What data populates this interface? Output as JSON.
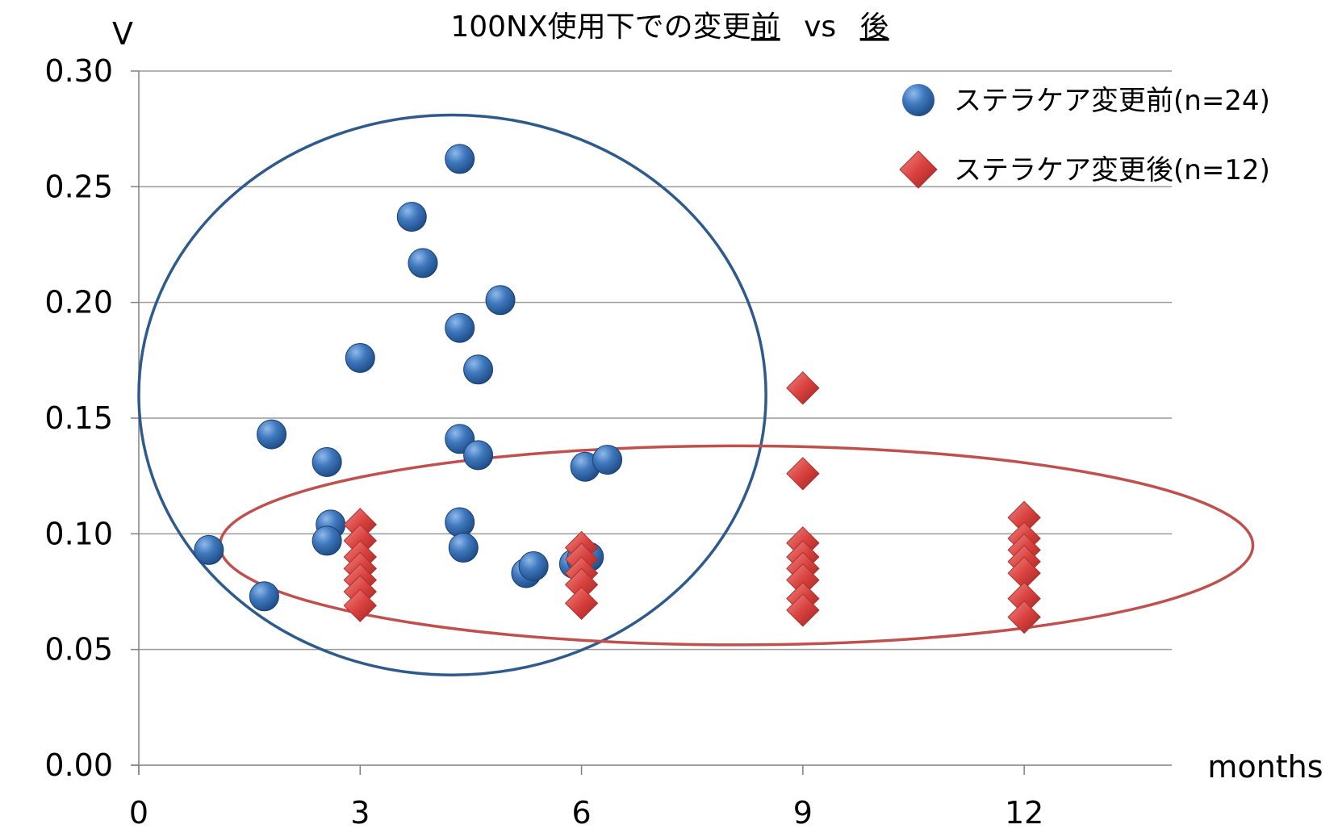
{
  "chart_data": {
    "type": "scatter",
    "title_parts": [
      {
        "text": "100NX使用下での変更",
        "underline": false
      },
      {
        "text": "前",
        "underline": true
      },
      {
        "text": " vs ",
        "underline": false
      },
      {
        "text": "後",
        "underline": true
      }
    ],
    "xlabel": "months",
    "ylabel": "V",
    "xlim": [
      0,
      14
    ],
    "ylim": [
      0,
      0.3
    ],
    "x_ticks": [
      "0",
      "3",
      "6",
      "9",
      "12"
    ],
    "y_ticks": [
      "0.00",
      "0.05",
      "0.10",
      "0.15",
      "0.20",
      "0.25",
      "0.30"
    ],
    "grid": "horizontal",
    "legend_position": "top-right",
    "series": [
      {
        "name": "ステラケア変更前(n=24)",
        "marker": "circle",
        "color": "#2e66a8",
        "points": [
          [
            0.95,
            0.093
          ],
          [
            1.7,
            0.073
          ],
          [
            1.8,
            0.143
          ],
          [
            2.55,
            0.131
          ],
          [
            2.6,
            0.104
          ],
          [
            2.55,
            0.097
          ],
          [
            3.0,
            0.176
          ],
          [
            3.7,
            0.237
          ],
          [
            3.85,
            0.217
          ],
          [
            4.35,
            0.262
          ],
          [
            4.35,
            0.189
          ],
          [
            4.35,
            0.141
          ],
          [
            4.35,
            0.105
          ],
          [
            4.4,
            0.094
          ],
          [
            4.6,
            0.171
          ],
          [
            4.6,
            0.134
          ],
          [
            4.9,
            0.201
          ],
          [
            5.25,
            0.083
          ],
          [
            5.35,
            0.086
          ],
          [
            5.9,
            0.087
          ],
          [
            6.0,
            0.089
          ],
          [
            6.1,
            0.09
          ],
          [
            6.05,
            0.129
          ],
          [
            6.35,
            0.132
          ]
        ]
      },
      {
        "name": "ステラケア変更後(n=12)",
        "marker": "diamond",
        "color": "#d9413e",
        "points": [
          [
            3,
            0.104
          ],
          [
            3,
            0.097
          ],
          [
            3,
            0.09
          ],
          [
            3,
            0.085
          ],
          [
            3,
            0.08
          ],
          [
            3,
            0.075
          ],
          [
            3,
            0.069
          ],
          [
            6,
            0.094
          ],
          [
            6,
            0.089
          ],
          [
            6,
            0.083
          ],
          [
            6,
            0.078
          ],
          [
            6,
            0.07
          ],
          [
            9,
            0.163
          ],
          [
            9,
            0.126
          ],
          [
            9,
            0.096
          ],
          [
            9,
            0.09
          ],
          [
            9,
            0.085
          ],
          [
            9,
            0.08
          ],
          [
            9,
            0.072
          ],
          [
            9,
            0.067
          ],
          [
            12,
            0.107
          ],
          [
            12,
            0.098
          ],
          [
            12,
            0.093
          ],
          [
            12,
            0.088
          ],
          [
            12,
            0.083
          ],
          [
            12,
            0.072
          ],
          [
            12,
            0.064
          ]
        ]
      }
    ],
    "annotations": [
      {
        "shape": "ellipse",
        "color": "#2f5a8c",
        "center": [
          4.25,
          0.16
        ],
        "radius": [
          4.25,
          0.121
        ]
      },
      {
        "shape": "ellipse",
        "color": "#c0504d",
        "center": [
          8.1,
          0.095
        ],
        "radius": [
          7.0,
          0.043
        ]
      }
    ]
  }
}
